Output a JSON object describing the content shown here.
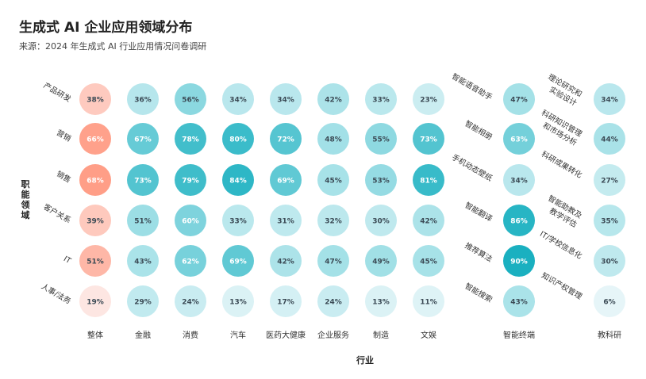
{
  "title": "生成式 AI 企业应用领域分布",
  "subtitle": "来源：2024 年生成式 AI 行业应用情况问卷调研",
  "chart_data": [
    {
      "type": "heatmap",
      "xlabel": "行业",
      "ylabel": "职能领域",
      "categories": [
        "整体",
        "金融",
        "消费",
        "汽车",
        "医药大健康",
        "企业服务",
        "制造",
        "文娱"
      ],
      "rows": [
        "产品研发",
        "营销",
        "销售",
        "客户关系",
        "IT",
        "人事/法务"
      ],
      "values": [
        [
          38,
          36,
          56,
          34,
          34,
          42,
          33,
          23
        ],
        [
          66,
          67,
          78,
          80,
          72,
          48,
          55,
          73
        ],
        [
          68,
          73,
          79,
          84,
          69,
          45,
          53,
          81
        ],
        [
          39,
          51,
          60,
          33,
          31,
          32,
          30,
          42
        ],
        [
          51,
          43,
          62,
          69,
          42,
          47,
          49,
          45
        ],
        [
          19,
          29,
          24,
          13,
          17,
          24,
          13,
          11
        ]
      ],
      "value_suffix": "%",
      "colors": {
        "overall_high": "#ff9e87",
        "overall_low": "#fde6e2",
        "teal_high": "#1ab0c0",
        "teal_low": "#e6f5f8"
      }
    },
    {
      "type": "heatmap",
      "categories": [
        "智能终端"
      ],
      "rows": [
        "智能语音助手",
        "智能相册",
        "手机动态壁纸",
        "智能翻译",
        "推荐算法",
        "智能搜索"
      ],
      "values": [
        [
          47
        ],
        [
          63
        ],
        [
          34
        ],
        [
          86
        ],
        [
          90
        ],
        [
          43
        ]
      ],
      "value_suffix": "%"
    },
    {
      "type": "heatmap",
      "categories": [
        "教科研"
      ],
      "rows": [
        [
          "理论研究和",
          "实验设计"
        ],
        [
          "科研知识管理",
          "和市场分析"
        ],
        [
          "科研成果转化"
        ],
        [
          "智能助教及",
          "教学评估"
        ],
        [
          "IT/学校信息化"
        ],
        [
          "知识产权管理"
        ]
      ],
      "values": [
        [
          34
        ],
        [
          44
        ],
        [
          27
        ],
        [
          35
        ],
        [
          30
        ],
        [
          6
        ]
      ],
      "value_suffix": "%"
    }
  ]
}
